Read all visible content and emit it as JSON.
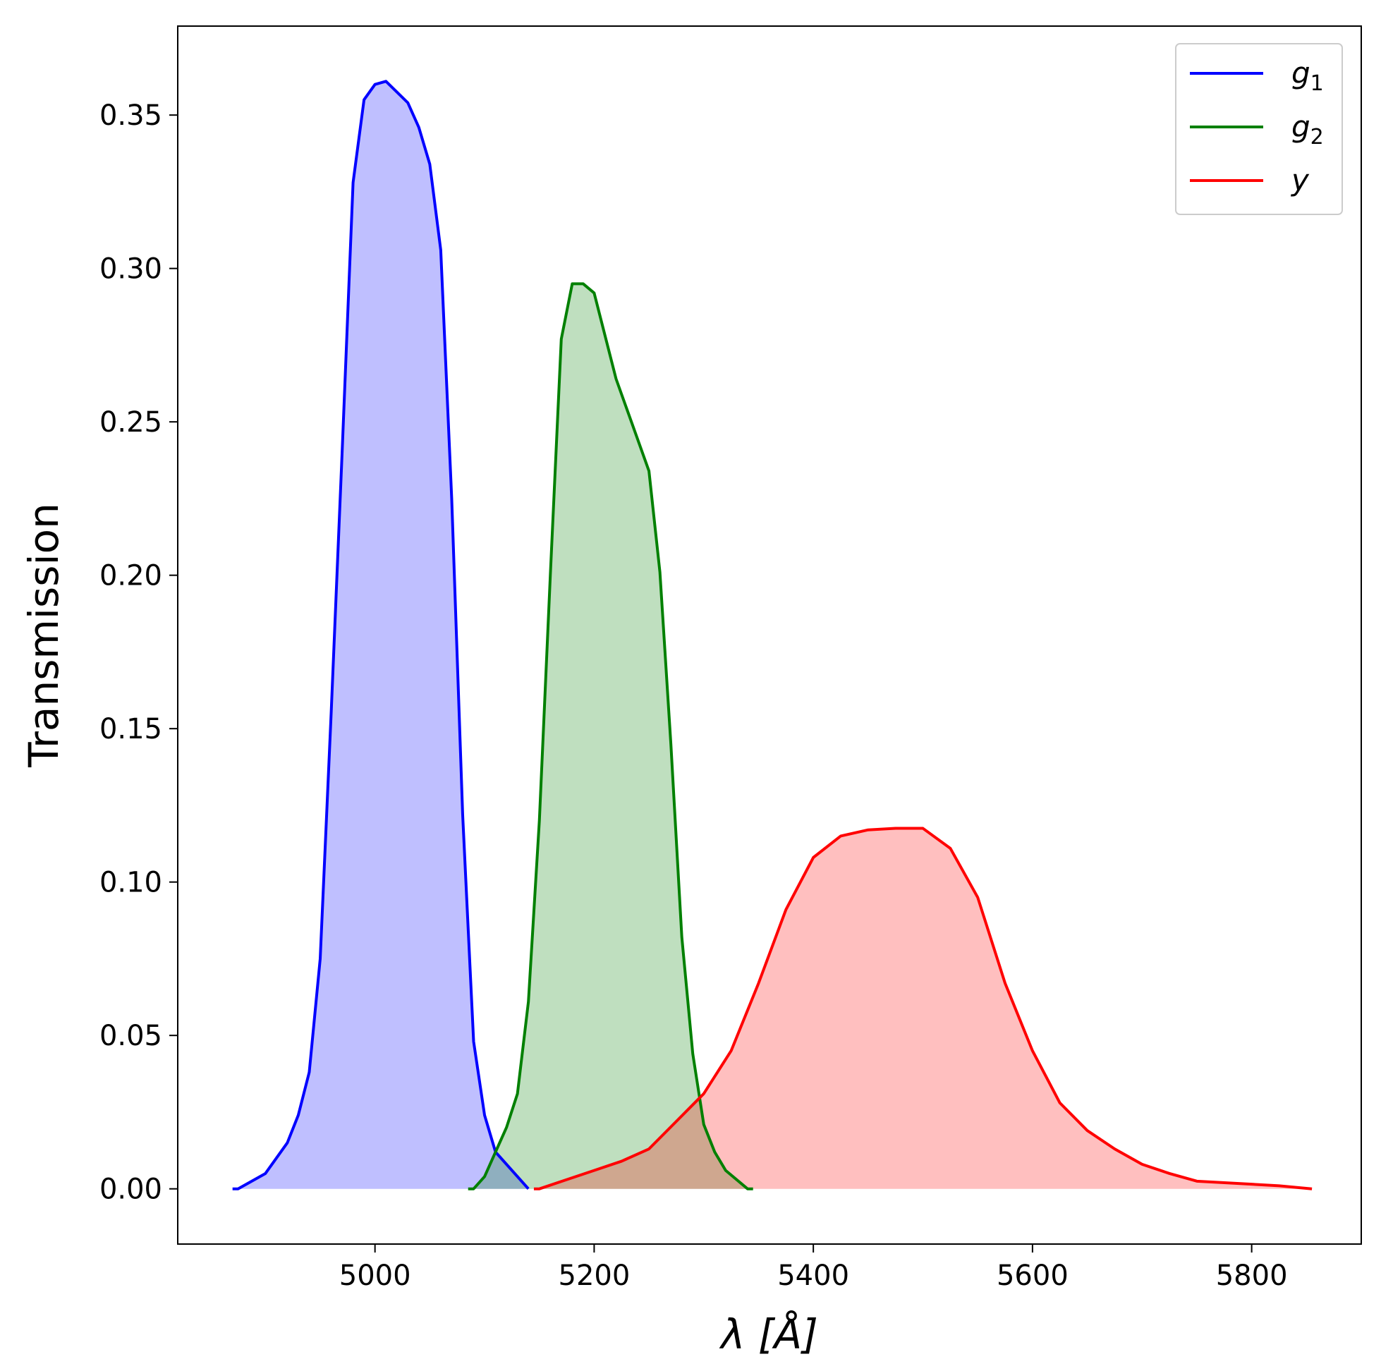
{
  "chart_data": {
    "type": "area",
    "title": "",
    "xlabel": "λ [Å]",
    "ylabel": "Transmission",
    "xlim": [
      4820,
      5900
    ],
    "ylim": [
      -0.018,
      0.379
    ],
    "xticks": [
      5000,
      5200,
      5400,
      5600,
      5800
    ],
    "yticks": [
      0.0,
      0.05,
      0.1,
      0.15,
      0.2,
      0.25,
      0.3,
      0.35
    ],
    "ytick_labels": [
      "0.00",
      "0.05",
      "0.10",
      "0.15",
      "0.20",
      "0.25",
      "0.30",
      "0.35"
    ],
    "grid": false,
    "legend_position": "top-right",
    "series": [
      {
        "name": "g1",
        "color": "#0000ff",
        "fill": "#0000ff",
        "fill_opacity": 0.25,
        "points": [
          [
            4870,
            0.0
          ],
          [
            4875,
            0.0
          ],
          [
            4900,
            0.005
          ],
          [
            4920,
            0.015
          ],
          [
            4930,
            0.024
          ],
          [
            4940,
            0.038
          ],
          [
            4950,
            0.075
          ],
          [
            4960,
            0.155
          ],
          [
            4970,
            0.24
          ],
          [
            4980,
            0.328
          ],
          [
            4990,
            0.355
          ],
          [
            5000,
            0.36
          ],
          [
            5010,
            0.361
          ],
          [
            5030,
            0.354
          ],
          [
            5040,
            0.346
          ],
          [
            5050,
            0.334
          ],
          [
            5060,
            0.306
          ],
          [
            5070,
            0.225
          ],
          [
            5080,
            0.122
          ],
          [
            5090,
            0.048
          ],
          [
            5100,
            0.024
          ],
          [
            5110,
            0.012
          ],
          [
            5140,
            0.0
          ]
        ]
      },
      {
        "name": "g2",
        "color": "#008000",
        "fill": "#008000",
        "fill_opacity": 0.25,
        "points": [
          [
            5085,
            0.0
          ],
          [
            5090,
            0.0
          ],
          [
            5100,
            0.004
          ],
          [
            5110,
            0.012
          ],
          [
            5120,
            0.02
          ],
          [
            5130,
            0.031
          ],
          [
            5140,
            0.061
          ],
          [
            5150,
            0.12
          ],
          [
            5160,
            0.2
          ],
          [
            5170,
            0.277
          ],
          [
            5180,
            0.295
          ],
          [
            5190,
            0.295
          ],
          [
            5200,
            0.292
          ],
          [
            5220,
            0.264
          ],
          [
            5250,
            0.234
          ],
          [
            5260,
            0.201
          ],
          [
            5270,
            0.145
          ],
          [
            5280,
            0.082
          ],
          [
            5290,
            0.044
          ],
          [
            5300,
            0.021
          ],
          [
            5310,
            0.012
          ],
          [
            5320,
            0.006
          ],
          [
            5340,
            0.0
          ],
          [
            5345,
            0.0
          ]
        ]
      },
      {
        "name": "y",
        "color": "#ff0000",
        "fill": "#ff0000",
        "fill_opacity": 0.25,
        "points": [
          [
            5145,
            0.0
          ],
          [
            5150,
            0.0
          ],
          [
            5175,
            0.003
          ],
          [
            5200,
            0.006
          ],
          [
            5225,
            0.009
          ],
          [
            5250,
            0.013
          ],
          [
            5275,
            0.022
          ],
          [
            5300,
            0.031
          ],
          [
            5325,
            0.045
          ],
          [
            5350,
            0.067
          ],
          [
            5375,
            0.091
          ],
          [
            5400,
            0.108
          ],
          [
            5425,
            0.115
          ],
          [
            5450,
            0.117
          ],
          [
            5475,
            0.1175
          ],
          [
            5500,
            0.1175
          ],
          [
            5525,
            0.111
          ],
          [
            5550,
            0.095
          ],
          [
            5575,
            0.067
          ],
          [
            5600,
            0.045
          ],
          [
            5625,
            0.028
          ],
          [
            5650,
            0.019
          ],
          [
            5675,
            0.013
          ],
          [
            5700,
            0.008
          ],
          [
            5725,
            0.005
          ],
          [
            5750,
            0.0025
          ],
          [
            5800,
            0.0015
          ],
          [
            5825,
            0.001
          ],
          [
            5855,
            0.0
          ]
        ]
      }
    ]
  },
  "legend": {
    "items": [
      {
        "label": "g",
        "sub": "1",
        "color": "#0000ff"
      },
      {
        "label": "g",
        "sub": "2",
        "color": "#008000"
      },
      {
        "label": "y",
        "sub": "",
        "color": "#ff0000"
      }
    ]
  }
}
